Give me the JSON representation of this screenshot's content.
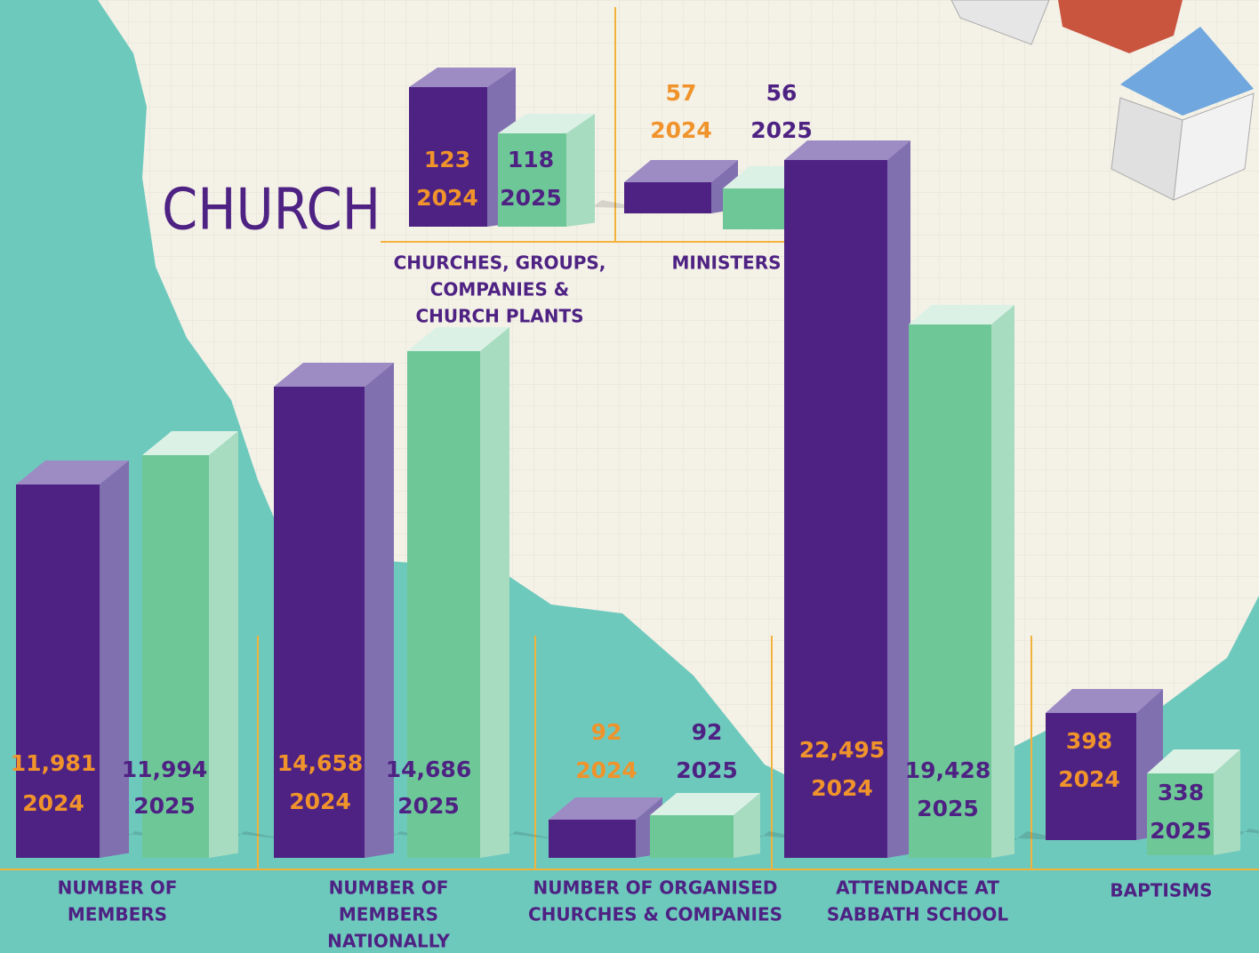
{
  "title": "CHURCH",
  "groups": [
    {
      "label": [
        "CHURCHES, GROUPS,",
        "COMPANIES &",
        "CHURCH PLANTS"
      ],
      "items": [
        {
          "value": "123",
          "year": "2024"
        },
        {
          "value": "118",
          "year": "2025"
        }
      ]
    },
    {
      "label": [
        "MINISTERS"
      ],
      "items": [
        {
          "value": "57",
          "year": "2024"
        },
        {
          "value": "56",
          "year": "2025"
        }
      ]
    },
    {
      "label": [
        "NUMBER OF",
        "MEMBERS"
      ],
      "items": [
        {
          "value": "11,981",
          "year": "2024"
        },
        {
          "value": "11,994",
          "year": "2025"
        }
      ]
    },
    {
      "label": [
        "NUMBER OF",
        "MEMBERS",
        "NATIONALLY"
      ],
      "items": [
        {
          "value": "14,658",
          "year": "2024"
        },
        {
          "value": "14,686",
          "year": "2025"
        }
      ]
    },
    {
      "label": [
        "NUMBER OF ORGANISED",
        "CHURCHES & COMPANIES"
      ],
      "items": [
        {
          "value": "92",
          "year": "2024"
        },
        {
          "value": "92",
          "year": "2025"
        }
      ]
    },
    {
      "label": [
        "ATTENDANCE AT",
        "SABBATH SCHOOL"
      ],
      "items": [
        {
          "value": "22,495",
          "year": "2024"
        },
        {
          "value": "19,428",
          "year": "2025"
        }
      ]
    },
    {
      "label": [
        "BAPTISMS"
      ],
      "items": [
        {
          "value": "398",
          "year": "2024"
        },
        {
          "value": "338",
          "year": "2025"
        }
      ]
    }
  ]
}
